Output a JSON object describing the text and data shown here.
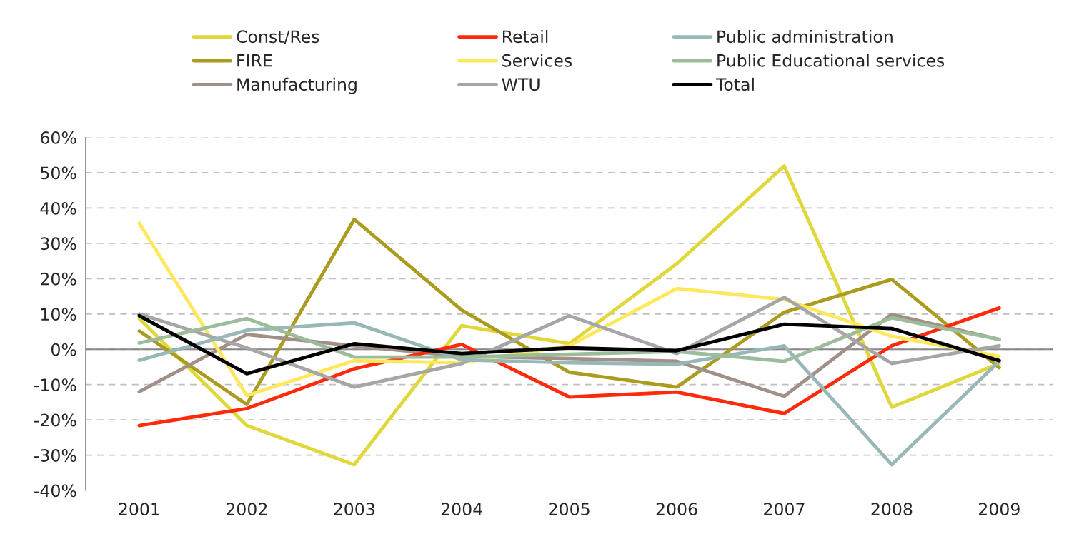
{
  "chart_data": {
    "type": "line",
    "categories": [
      "2001",
      "2002",
      "2003",
      "2004",
      "2005",
      "2006",
      "2007",
      "2008",
      "2009"
    ],
    "series": [
      {
        "name": "Const/Res",
        "color": "#e0d83a",
        "values": [
          8.7,
          -21.6,
          -32.7,
          6.7,
          1.6,
          24.2,
          51.9,
          -16.4,
          -4
        ]
      },
      {
        "name": "FIRE",
        "color": "#ab9b1f",
        "values": [
          5.2,
          -15.6,
          36.8,
          11.1,
          -6.5,
          -10.7,
          10.5,
          19.8,
          -5.2
        ]
      },
      {
        "name": "Manufacturing",
        "color": "#a09088",
        "values": [
          -12,
          4.2,
          1,
          -2,
          -2.6,
          -3.4,
          -13.3,
          9.9,
          2.8
        ]
      },
      {
        "name": "Retail",
        "color": "#ff2a0a",
        "values": [
          -21.6,
          -16.8,
          -5.5,
          1.4,
          -13.5,
          -12.1,
          -18.2,
          1,
          11.7
        ]
      },
      {
        "name": "Services",
        "color": "#ffe85c",
        "values": [
          35.7,
          -13.1,
          -3.2,
          -3.8,
          1,
          17.2,
          14.1,
          3.7,
          -2
        ]
      },
      {
        "name": "WTU",
        "color": "#a6a6a6",
        "values": [
          10,
          0.4,
          -10.7,
          -4,
          9.5,
          -1.2,
          14.7,
          -4,
          1
        ]
      },
      {
        "name": "Public administration",
        "color": "#98b8b8",
        "values": [
          -3.1,
          5.4,
          7.5,
          -3,
          -3.8,
          -4.2,
          1,
          -32.7,
          -3.4
        ]
      },
      {
        "name": "Public Educational services",
        "color": "#9cbc9c",
        "values": [
          1.8,
          8.7,
          -2.2,
          -2.2,
          -1.4,
          -0.6,
          -3.4,
          8.9,
          2.8
        ]
      },
      {
        "name": "Total",
        "color": "#000000",
        "values": [
          9.5,
          -6.9,
          1.6,
          -1.2,
          0.4,
          -0.4,
          7.1,
          5.9,
          -3.2
        ]
      }
    ],
    "ylim": [
      -40,
      60
    ],
    "yticks": [
      {
        "value": -40,
        "label": "-40%"
      },
      {
        "value": -30,
        "label": "-30%"
      },
      {
        "value": -20,
        "label": "-20%"
      },
      {
        "value": -10,
        "label": "-10%"
      },
      {
        "value": 0,
        "label": "0%"
      },
      {
        "value": 10,
        "label": "10%"
      },
      {
        "value": 20,
        "label": "20%"
      },
      {
        "value": 30,
        "label": "30%"
      },
      {
        "value": 40,
        "label": "40%"
      },
      {
        "value": 50,
        "label": "50%"
      },
      {
        "value": 60,
        "label": "60%"
      }
    ],
    "grid": "y",
    "legend": "top",
    "marker": "none",
    "line_style": "solid"
  }
}
